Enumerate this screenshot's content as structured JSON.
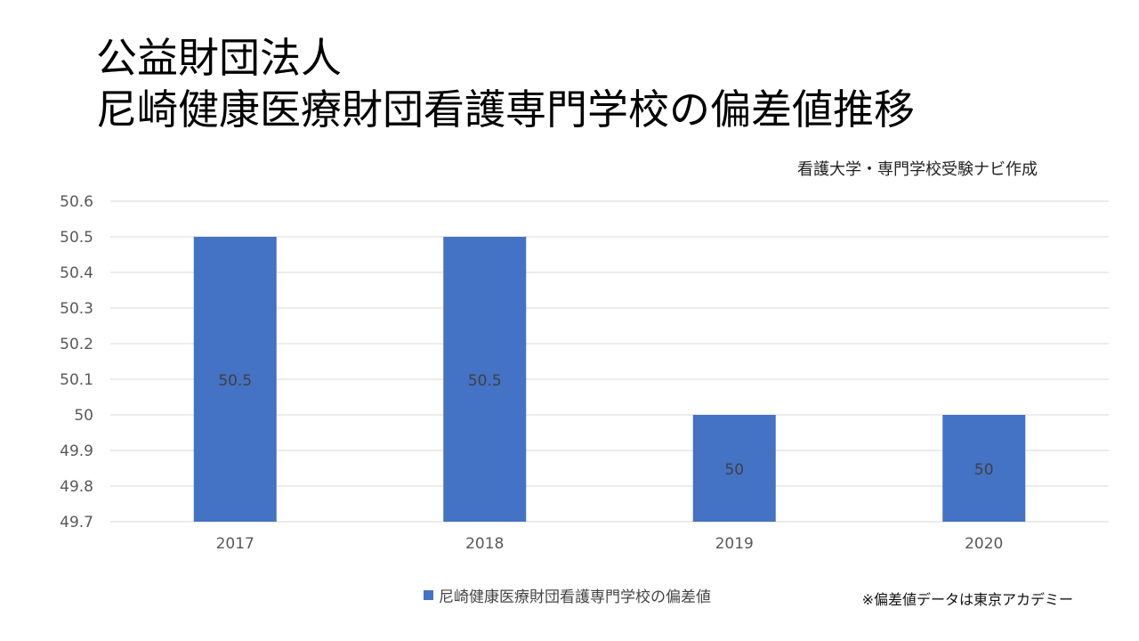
{
  "title_line1": "公益財団法人",
  "title_line2": "尼崎健康医療財団看護専門学校の偏差値推移",
  "credit": "看護大学・専門学校受験ナビ作成",
  "source_note": "※偏差値データは東京アカデミー",
  "colors": {
    "bar": "#4472C4",
    "grid": "#D9D9D9",
    "tick_text": "#595959",
    "bar_label": "#404040"
  },
  "chart_data": {
    "type": "bar",
    "title": "公益財団法人 尼崎健康医療財団看護専門学校の偏差値推移",
    "categories": [
      "2017",
      "2018",
      "2019",
      "2020"
    ],
    "series": [
      {
        "name": "尼崎健康医療財団看護専門学校の偏差値",
        "values": [
          50.5,
          50.5,
          50,
          50
        ]
      }
    ],
    "data_labels": [
      "50.5",
      "50.5",
      "50",
      "50"
    ],
    "ylim": [
      49.7,
      50.6
    ],
    "yticks": [
      "49.7",
      "49.8",
      "49.9",
      "50",
      "50.1",
      "50.2",
      "50.3",
      "50.4",
      "50.5",
      "50.6"
    ],
    "grid": true,
    "legend_position": "bottom"
  }
}
